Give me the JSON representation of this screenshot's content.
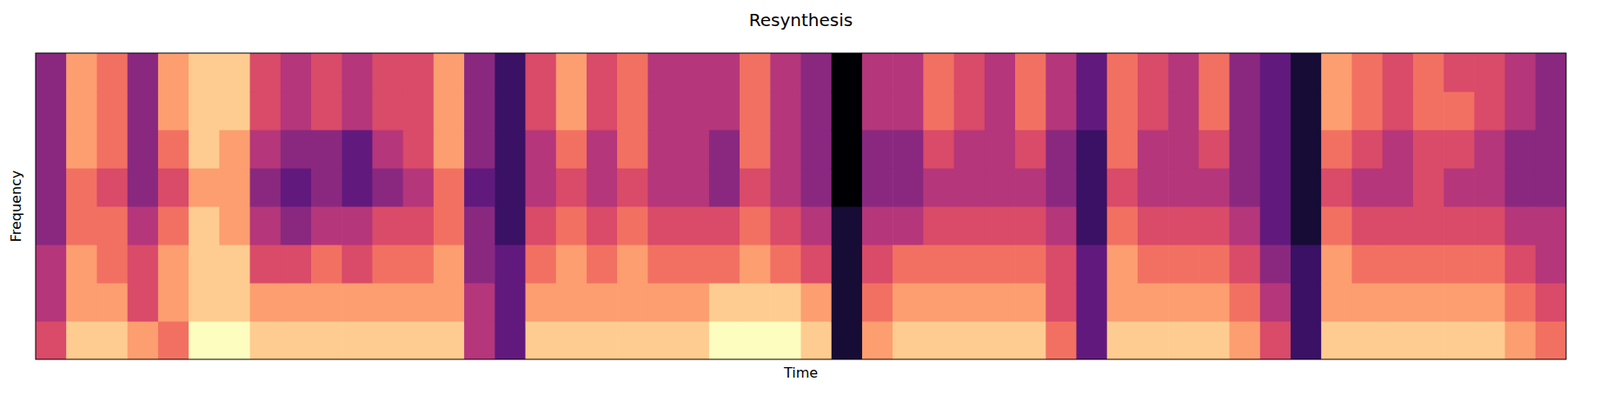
{
  "chart_data": {
    "type": "heatmap",
    "title": "Resynthesis",
    "x_label": "Time",
    "y_label": "Frequency",
    "tick_labels": false,
    "zlim": [
      0,
      10
    ],
    "cells": [
      [
        6,
        5,
        5,
        4,
        4,
        4,
        4,
        4
      ],
      [
        9,
        8,
        8,
        7,
        7,
        8,
        8,
        8
      ],
      [
        9,
        8,
        7,
        7,
        6,
        7,
        7,
        7
      ],
      [
        8,
        6,
        6,
        5,
        4,
        4,
        4,
        4
      ],
      [
        7,
        8,
        8,
        7,
        6,
        7,
        8,
        8
      ],
      [
        10,
        9,
        9,
        9,
        8,
        9,
        9,
        9
      ],
      [
        10,
        9,
        9,
        8,
        8,
        8,
        9,
        9
      ],
      [
        9,
        8,
        6,
        5,
        4,
        5,
        6,
        6
      ],
      [
        9,
        8,
        6,
        4,
        3,
        4,
        5,
        5
      ],
      [
        9,
        8,
        7,
        5,
        4,
        4,
        6,
        6
      ],
      [
        9,
        8,
        6,
        5,
        3,
        3,
        5,
        5
      ],
      [
        9,
        8,
        7,
        6,
        4,
        5,
        6,
        6
      ],
      [
        9,
        8,
        7,
        6,
        5,
        6,
        6,
        6
      ],
      [
        9,
        8,
        8,
        7,
        7,
        8,
        8,
        8
      ],
      [
        5,
        5,
        4,
        4,
        3,
        4,
        4,
        4
      ],
      [
        3,
        3,
        3,
        2,
        2,
        2,
        2,
        2
      ],
      [
        9,
        8,
        7,
        6,
        5,
        5,
        6,
        6
      ],
      [
        9,
        8,
        8,
        7,
        6,
        7,
        8,
        8
      ],
      [
        9,
        8,
        7,
        6,
        5,
        5,
        6,
        6
      ],
      [
        9,
        8,
        8,
        7,
        6,
        7,
        7,
        7
      ],
      [
        9,
        8,
        7,
        6,
        5,
        5,
        5,
        5
      ],
      [
        9,
        8,
        7,
        6,
        5,
        5,
        5,
        5
      ],
      [
        10,
        9,
        7,
        6,
        4,
        4,
        5,
        5
      ],
      [
        10,
        9,
        8,
        7,
        6,
        7,
        7,
        7
      ],
      [
        10,
        9,
        7,
        6,
        5,
        5,
        5,
        5
      ],
      [
        9,
        8,
        6,
        5,
        4,
        4,
        4,
        4
      ],
      [
        1,
        1,
        1,
        1,
        0,
        0,
        0,
        0
      ],
      [
        8,
        7,
        6,
        5,
        4,
        4,
        5,
        5
      ],
      [
        9,
        8,
        7,
        5,
        4,
        4,
        5,
        5
      ],
      [
        9,
        8,
        7,
        6,
        5,
        6,
        7,
        7
      ],
      [
        9,
        8,
        7,
        6,
        5,
        5,
        6,
        6
      ],
      [
        9,
        8,
        7,
        6,
        5,
        5,
        5,
        5
      ],
      [
        9,
        8,
        7,
        6,
        5,
        6,
        7,
        7
      ],
      [
        7,
        6,
        6,
        5,
        4,
        4,
        5,
        5
      ],
      [
        3,
        3,
        3,
        2,
        2,
        2,
        3,
        3
      ],
      [
        9,
        8,
        8,
        7,
        6,
        7,
        7,
        7
      ],
      [
        9,
        8,
        7,
        6,
        5,
        5,
        6,
        6
      ],
      [
        9,
        8,
        7,
        6,
        5,
        5,
        5,
        5
      ],
      [
        9,
        8,
        7,
        6,
        5,
        6,
        7,
        7
      ],
      [
        8,
        7,
        6,
        5,
        4,
        4,
        4,
        4
      ],
      [
        6,
        5,
        4,
        3,
        3,
        3,
        3,
        3
      ],
      [
        2,
        2,
        2,
        1,
        1,
        1,
        1,
        1
      ],
      [
        9,
        8,
        8,
        7,
        6,
        7,
        8,
        8
      ],
      [
        9,
        8,
        7,
        6,
        5,
        6,
        7,
        7
      ],
      [
        9,
        8,
        7,
        6,
        5,
        5,
        6,
        6
      ],
      [
        9,
        8,
        7,
        6,
        6,
        6,
        7,
        7
      ],
      [
        9,
        8,
        7,
        6,
        5,
        6,
        7,
        6
      ],
      [
        9,
        8,
        7,
        6,
        5,
        5,
        6,
        6
      ],
      [
        8,
        7,
        6,
        5,
        4,
        4,
        5,
        5
      ],
      [
        7,
        6,
        5,
        5,
        4,
        4,
        4,
        4
      ]
    ]
  }
}
